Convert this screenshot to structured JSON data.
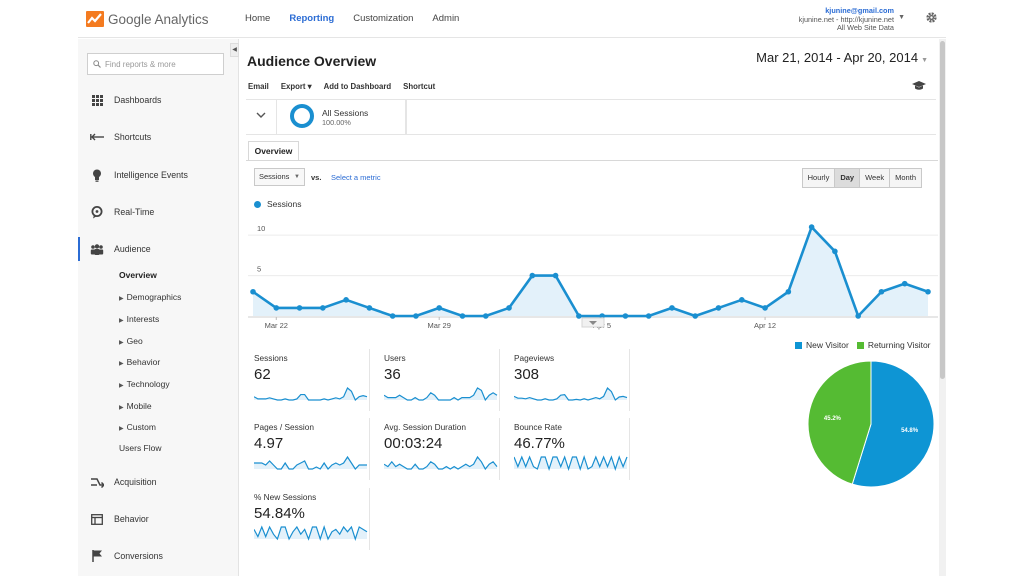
{
  "app": {
    "name": "Google Analytics"
  },
  "nav": [
    {
      "label": "Home"
    },
    {
      "label": "Reporting",
      "active": true
    },
    {
      "label": "Customization"
    },
    {
      "label": "Admin"
    }
  ],
  "account": {
    "email": "kjunine@gmail.com",
    "property": "kjunine.net - http://kjunine.net",
    "view": "All Web Site Data"
  },
  "sidebar": {
    "search_placeholder": "Find reports & more",
    "items": [
      {
        "label": "Dashboards",
        "icon": "grid-icon"
      },
      {
        "label": "Shortcuts",
        "icon": "shortcut-arrow-icon"
      },
      {
        "label": "Intelligence Events",
        "icon": "lightbulb-icon"
      },
      {
        "label": "Real-Time",
        "icon": "realtime-icon"
      },
      {
        "label": "Audience",
        "icon": "people-icon",
        "active": true
      },
      {
        "label": "Acquisition",
        "icon": "acquisition-icon"
      },
      {
        "label": "Behavior",
        "icon": "behavior-icon"
      },
      {
        "label": "Conversions",
        "icon": "flag-icon"
      }
    ],
    "audience_sub": [
      {
        "label": "Overview",
        "active": true
      },
      {
        "label": "Demographics",
        "expandable": true
      },
      {
        "label": "Interests",
        "expandable": true
      },
      {
        "label": "Geo",
        "expandable": true
      },
      {
        "label": "Behavior",
        "expandable": true
      },
      {
        "label": "Technology",
        "expandable": true
      },
      {
        "label": "Mobile",
        "expandable": true
      },
      {
        "label": "Custom",
        "expandable": true
      },
      {
        "label": "Users Flow"
      }
    ]
  },
  "main": {
    "title": "Audience Overview",
    "date_range": "Mar 21, 2014 - Apr 20, 2014",
    "toolbar": [
      "Email",
      "Export ▾",
      "Add to Dashboard",
      "Shortcut"
    ],
    "segment": {
      "name": "All Sessions",
      "percent": "100.00%"
    },
    "tab": "Overview",
    "metric_select": "Sessions",
    "vs": "vs.",
    "select_metric": "Select a metric",
    "granularity": [
      {
        "label": "Hourly"
      },
      {
        "label": "Day",
        "active": true
      },
      {
        "label": "Week"
      },
      {
        "label": "Month"
      }
    ],
    "series_label": "Sessions"
  },
  "chart_data": [
    {
      "type": "line",
      "series": [
        {
          "name": "Sessions",
          "values": [
            3,
            1,
            1,
            1,
            2,
            1,
            0,
            0,
            1,
            0,
            0,
            1,
            5,
            5,
            0,
            0,
            0,
            0,
            1,
            0,
            1,
            2,
            1,
            3,
            11,
            8,
            0,
            3,
            4,
            3
          ]
        }
      ],
      "x_tick_labels": [
        "Mar 22",
        "Mar 29",
        "Apr 5",
        "Apr 12"
      ],
      "y_tick_labels": [
        "5",
        "10"
      ],
      "ylim": [
        0,
        12
      ],
      "color": "#1a8fd0"
    },
    {
      "type": "pie",
      "slices": [
        {
          "name": "New Visitor",
          "value": 54.8,
          "label": "54.8%",
          "color": "#0e95d4"
        },
        {
          "name": "Returning Visitor",
          "value": 45.2,
          "label": "45.2%",
          "color": "#55bb33"
        }
      ]
    }
  ],
  "scorecards": [
    {
      "label": "Sessions",
      "value": "62",
      "spark": [
        3,
        1,
        1,
        1,
        2,
        1,
        0,
        0,
        1,
        0,
        0,
        1,
        5,
        5,
        0,
        0,
        0,
        0,
        1,
        0,
        1,
        2,
        1,
        3,
        11,
        8,
        0,
        3,
        4,
        3
      ]
    },
    {
      "label": "Users",
      "value": "36",
      "spark": [
        2,
        1,
        1,
        1,
        2,
        1,
        0,
        0,
        1,
        0,
        0,
        1,
        3,
        2,
        0,
        0,
        0,
        0,
        1,
        0,
        1,
        1,
        1,
        2,
        5,
        4,
        0,
        2,
        3,
        2
      ]
    },
    {
      "label": "Pageviews",
      "value": "308",
      "spark": [
        6,
        3,
        3,
        2,
        4,
        2,
        0,
        0,
        2,
        0,
        0,
        2,
        8,
        9,
        0,
        0,
        1,
        0,
        2,
        0,
        2,
        4,
        2,
        6,
        20,
        14,
        0,
        5,
        6,
        4
      ]
    },
    {
      "label": "Pages / Session",
      "value": "4.97",
      "spark": [
        3,
        3,
        3,
        2,
        4,
        2,
        0,
        0,
        3,
        0,
        0,
        2,
        3,
        4,
        0,
        0,
        1,
        0,
        3,
        0,
        2,
        3,
        2,
        3,
        6,
        3,
        0,
        2,
        2,
        2
      ]
    },
    {
      "label": "Avg. Session Duration",
      "value": "00:03:24",
      "spark": [
        2,
        1,
        3,
        1,
        2,
        1,
        0,
        0,
        2,
        0,
        0,
        1,
        3,
        2,
        0,
        0,
        1,
        0,
        1,
        0,
        1,
        2,
        1,
        2,
        5,
        3,
        0,
        2,
        3,
        1
      ]
    },
    {
      "label": "Bounce Rate",
      "value": "46.77%",
      "spark": [
        5,
        1,
        5,
        1,
        5,
        1,
        0,
        5,
        5,
        0,
        5,
        5,
        1,
        5,
        0,
        5,
        5,
        0,
        5,
        0,
        1,
        5,
        1,
        5,
        1,
        5,
        0,
        5,
        1,
        5
      ]
    },
    {
      "label": "% New Sessions",
      "value": "54.84%",
      "spark": [
        4,
        1,
        5,
        1,
        5,
        2,
        0,
        5,
        5,
        0,
        3,
        5,
        2,
        4,
        0,
        5,
        5,
        0,
        5,
        0,
        3,
        4,
        2,
        5,
        3,
        5,
        0,
        5,
        4,
        3
      ]
    }
  ]
}
